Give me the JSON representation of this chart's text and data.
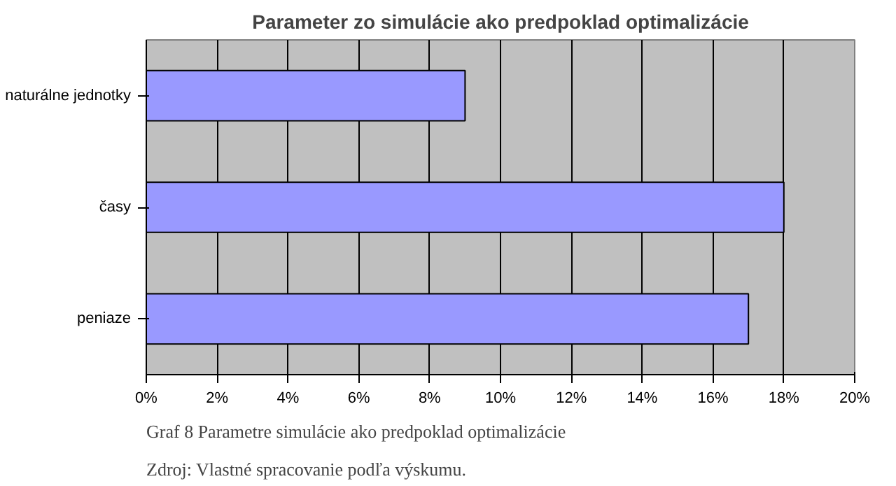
{
  "chart_data": {
    "type": "bar",
    "orientation": "horizontal",
    "title": "Parameter zo simulácie ako predpoklad optimalizácie",
    "categories": [
      "naturálne jednotky",
      "časy",
      "peniaze"
    ],
    "values": [
      9,
      18,
      17
    ],
    "color": "#9999ff",
    "xlim": [
      0,
      20
    ],
    "xticks": [
      {
        "value": 0,
        "label": "0%"
      },
      {
        "value": 2,
        "label": "2%"
      },
      {
        "value": 4,
        "label": "4%"
      },
      {
        "value": 6,
        "label": "6%"
      },
      {
        "value": 8,
        "label": "8%"
      },
      {
        "value": 10,
        "label": "10%"
      },
      {
        "value": 12,
        "label": "12%"
      },
      {
        "value": 14,
        "label": "14%"
      },
      {
        "value": 16,
        "label": "16%"
      },
      {
        "value": 18,
        "label": "18%"
      },
      {
        "value": 20,
        "label": "20%"
      }
    ],
    "grid": "x",
    "annotations": [
      "Graf 8 Parametre simulácie ako predpoklad optimalizácie",
      "Zdroj: Vlastné spracovanie podľa výskumu."
    ]
  }
}
